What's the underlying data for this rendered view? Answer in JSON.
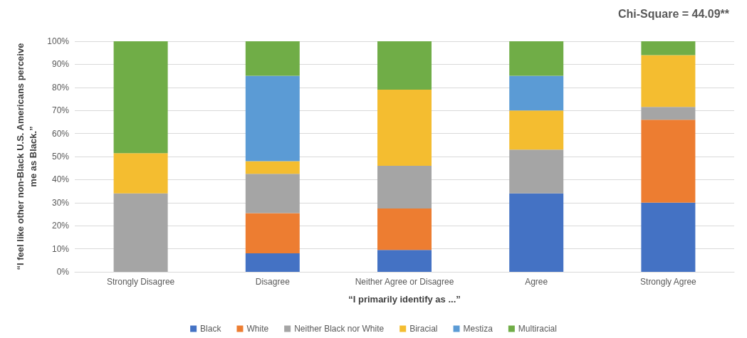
{
  "chart_data": {
    "type": "bar",
    "stacked": true,
    "title": "Chi-Square = 44.09**",
    "xlabel": "“I primarily identify as ...”",
    "ylabel": "“I feel like other non-Black U.S. Americans perceive\nme as Black.”",
    "categories": [
      "Strongly Disagree",
      "Disagree",
      "Neither Agree or Disagree",
      "Agree",
      "Strongly Agree"
    ],
    "series": [
      {
        "name": "Black",
        "color": "#4472c4",
        "values": [
          0,
          8,
          9.5,
          34,
          30
        ]
      },
      {
        "name": "White",
        "color": "#ed7d31",
        "values": [
          0,
          17.5,
          18,
          0,
          36
        ]
      },
      {
        "name": "Neither Black nor White",
        "color": "#a5a5a5",
        "values": [
          34,
          17,
          18.5,
          19,
          5.5
        ]
      },
      {
        "name": "Biracial",
        "color": "#f4bd30",
        "values": [
          17.5,
          5.5,
          33,
          17,
          22.5
        ]
      },
      {
        "name": "Mestiza",
        "color": "#5b9bd5",
        "values": [
          0,
          37,
          0,
          15,
          0
        ]
      },
      {
        "name": "Multiracial",
        "color": "#70ad47",
        "values": [
          48.5,
          15,
          21,
          15,
          6
        ]
      }
    ],
    "ylim": [
      0,
      100
    ],
    "yticks": [
      {
        "value": 0,
        "label": "0%"
      },
      {
        "value": 10,
        "label": "10%"
      },
      {
        "value": 20,
        "label": "20%"
      },
      {
        "value": 30,
        "label": "30%"
      },
      {
        "value": 40,
        "label": "40%"
      },
      {
        "value": 50,
        "label": "50%"
      },
      {
        "value": 60,
        "label": "60%"
      },
      {
        "value": 70,
        "label": "70%"
      },
      {
        "value": 80,
        "label": "80%"
      },
      {
        "value": 90,
        "label": "90%"
      },
      {
        "value": 100,
        "label": "100%"
      }
    ],
    "grid": "y",
    "legend": "bottom"
  }
}
